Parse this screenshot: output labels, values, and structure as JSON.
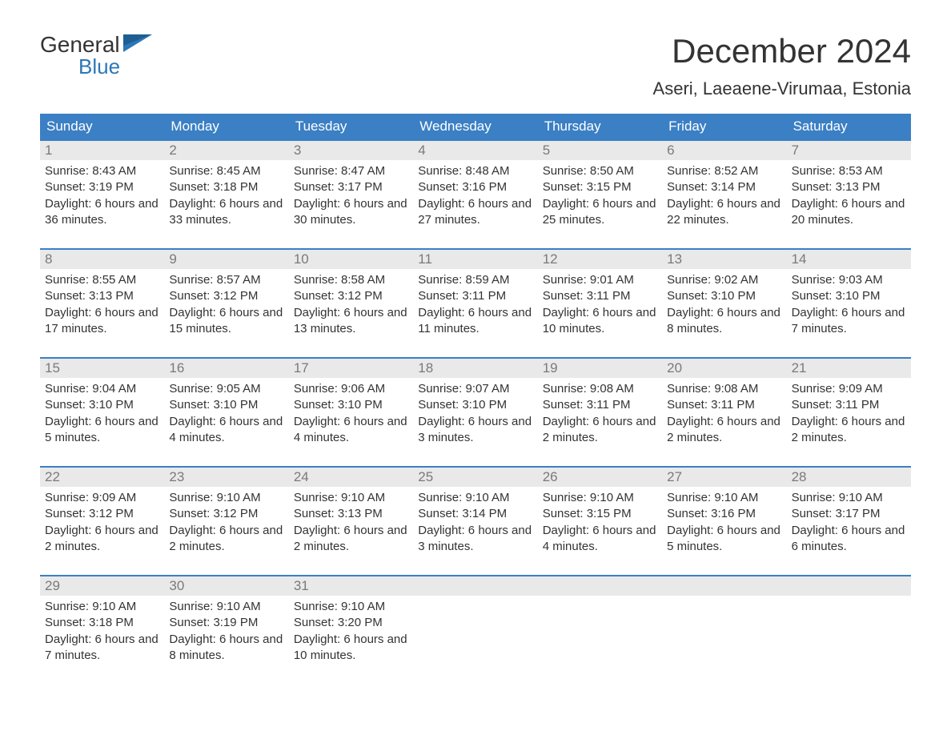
{
  "logo": {
    "text1": "General",
    "text2": "Blue",
    "color_blue": "#2b77b8",
    "color_dark": "#333333"
  },
  "title": "December 2024",
  "location": "Aseri, Laeaene-Virumaa, Estonia",
  "colors": {
    "header_bg": "#3b7fc4",
    "header_text": "#ffffff",
    "daynum_bg": "#e9e9e9",
    "daynum_text": "#7a7a7a",
    "border": "#3b7fc4",
    "body_text": "#333333",
    "background": "#ffffff"
  },
  "fonts": {
    "title_size": 42,
    "location_size": 22,
    "dow_size": 17,
    "body_size": 15
  },
  "days_of_week": [
    "Sunday",
    "Monday",
    "Tuesday",
    "Wednesday",
    "Thursday",
    "Friday",
    "Saturday"
  ],
  "weeks": [
    [
      {
        "n": "1",
        "sunrise": "Sunrise: 8:43 AM",
        "sunset": "Sunset: 3:19 PM",
        "daylight": "Daylight: 6 hours and 36 minutes."
      },
      {
        "n": "2",
        "sunrise": "Sunrise: 8:45 AM",
        "sunset": "Sunset: 3:18 PM",
        "daylight": "Daylight: 6 hours and 33 minutes."
      },
      {
        "n": "3",
        "sunrise": "Sunrise: 8:47 AM",
        "sunset": "Sunset: 3:17 PM",
        "daylight": "Daylight: 6 hours and 30 minutes."
      },
      {
        "n": "4",
        "sunrise": "Sunrise: 8:48 AM",
        "sunset": "Sunset: 3:16 PM",
        "daylight": "Daylight: 6 hours and 27 minutes."
      },
      {
        "n": "5",
        "sunrise": "Sunrise: 8:50 AM",
        "sunset": "Sunset: 3:15 PM",
        "daylight": "Daylight: 6 hours and 25 minutes."
      },
      {
        "n": "6",
        "sunrise": "Sunrise: 8:52 AM",
        "sunset": "Sunset: 3:14 PM",
        "daylight": "Daylight: 6 hours and 22 minutes."
      },
      {
        "n": "7",
        "sunrise": "Sunrise: 8:53 AM",
        "sunset": "Sunset: 3:13 PM",
        "daylight": "Daylight: 6 hours and 20 minutes."
      }
    ],
    [
      {
        "n": "8",
        "sunrise": "Sunrise: 8:55 AM",
        "sunset": "Sunset: 3:13 PM",
        "daylight": "Daylight: 6 hours and 17 minutes."
      },
      {
        "n": "9",
        "sunrise": "Sunrise: 8:57 AM",
        "sunset": "Sunset: 3:12 PM",
        "daylight": "Daylight: 6 hours and 15 minutes."
      },
      {
        "n": "10",
        "sunrise": "Sunrise: 8:58 AM",
        "sunset": "Sunset: 3:12 PM",
        "daylight": "Daylight: 6 hours and 13 minutes."
      },
      {
        "n": "11",
        "sunrise": "Sunrise: 8:59 AM",
        "sunset": "Sunset: 3:11 PM",
        "daylight": "Daylight: 6 hours and 11 minutes."
      },
      {
        "n": "12",
        "sunrise": "Sunrise: 9:01 AM",
        "sunset": "Sunset: 3:11 PM",
        "daylight": "Daylight: 6 hours and 10 minutes."
      },
      {
        "n": "13",
        "sunrise": "Sunrise: 9:02 AM",
        "sunset": "Sunset: 3:10 PM",
        "daylight": "Daylight: 6 hours and 8 minutes."
      },
      {
        "n": "14",
        "sunrise": "Sunrise: 9:03 AM",
        "sunset": "Sunset: 3:10 PM",
        "daylight": "Daylight: 6 hours and 7 minutes."
      }
    ],
    [
      {
        "n": "15",
        "sunrise": "Sunrise: 9:04 AM",
        "sunset": "Sunset: 3:10 PM",
        "daylight": "Daylight: 6 hours and 5 minutes."
      },
      {
        "n": "16",
        "sunrise": "Sunrise: 9:05 AM",
        "sunset": "Sunset: 3:10 PM",
        "daylight": "Daylight: 6 hours and 4 minutes."
      },
      {
        "n": "17",
        "sunrise": "Sunrise: 9:06 AM",
        "sunset": "Sunset: 3:10 PM",
        "daylight": "Daylight: 6 hours and 4 minutes."
      },
      {
        "n": "18",
        "sunrise": "Sunrise: 9:07 AM",
        "sunset": "Sunset: 3:10 PM",
        "daylight": "Daylight: 6 hours and 3 minutes."
      },
      {
        "n": "19",
        "sunrise": "Sunrise: 9:08 AM",
        "sunset": "Sunset: 3:11 PM",
        "daylight": "Daylight: 6 hours and 2 minutes."
      },
      {
        "n": "20",
        "sunrise": "Sunrise: 9:08 AM",
        "sunset": "Sunset: 3:11 PM",
        "daylight": "Daylight: 6 hours and 2 minutes."
      },
      {
        "n": "21",
        "sunrise": "Sunrise: 9:09 AM",
        "sunset": "Sunset: 3:11 PM",
        "daylight": "Daylight: 6 hours and 2 minutes."
      }
    ],
    [
      {
        "n": "22",
        "sunrise": "Sunrise: 9:09 AM",
        "sunset": "Sunset: 3:12 PM",
        "daylight": "Daylight: 6 hours and 2 minutes."
      },
      {
        "n": "23",
        "sunrise": "Sunrise: 9:10 AM",
        "sunset": "Sunset: 3:12 PM",
        "daylight": "Daylight: 6 hours and 2 minutes."
      },
      {
        "n": "24",
        "sunrise": "Sunrise: 9:10 AM",
        "sunset": "Sunset: 3:13 PM",
        "daylight": "Daylight: 6 hours and 2 minutes."
      },
      {
        "n": "25",
        "sunrise": "Sunrise: 9:10 AM",
        "sunset": "Sunset: 3:14 PM",
        "daylight": "Daylight: 6 hours and 3 minutes."
      },
      {
        "n": "26",
        "sunrise": "Sunrise: 9:10 AM",
        "sunset": "Sunset: 3:15 PM",
        "daylight": "Daylight: 6 hours and 4 minutes."
      },
      {
        "n": "27",
        "sunrise": "Sunrise: 9:10 AM",
        "sunset": "Sunset: 3:16 PM",
        "daylight": "Daylight: 6 hours and 5 minutes."
      },
      {
        "n": "28",
        "sunrise": "Sunrise: 9:10 AM",
        "sunset": "Sunset: 3:17 PM",
        "daylight": "Daylight: 6 hours and 6 minutes."
      }
    ],
    [
      {
        "n": "29",
        "sunrise": "Sunrise: 9:10 AM",
        "sunset": "Sunset: 3:18 PM",
        "daylight": "Daylight: 6 hours and 7 minutes."
      },
      {
        "n": "30",
        "sunrise": "Sunrise: 9:10 AM",
        "sunset": "Sunset: 3:19 PM",
        "daylight": "Daylight: 6 hours and 8 minutes."
      },
      {
        "n": "31",
        "sunrise": "Sunrise: 9:10 AM",
        "sunset": "Sunset: 3:20 PM",
        "daylight": "Daylight: 6 hours and 10 minutes."
      },
      null,
      null,
      null,
      null
    ]
  ]
}
